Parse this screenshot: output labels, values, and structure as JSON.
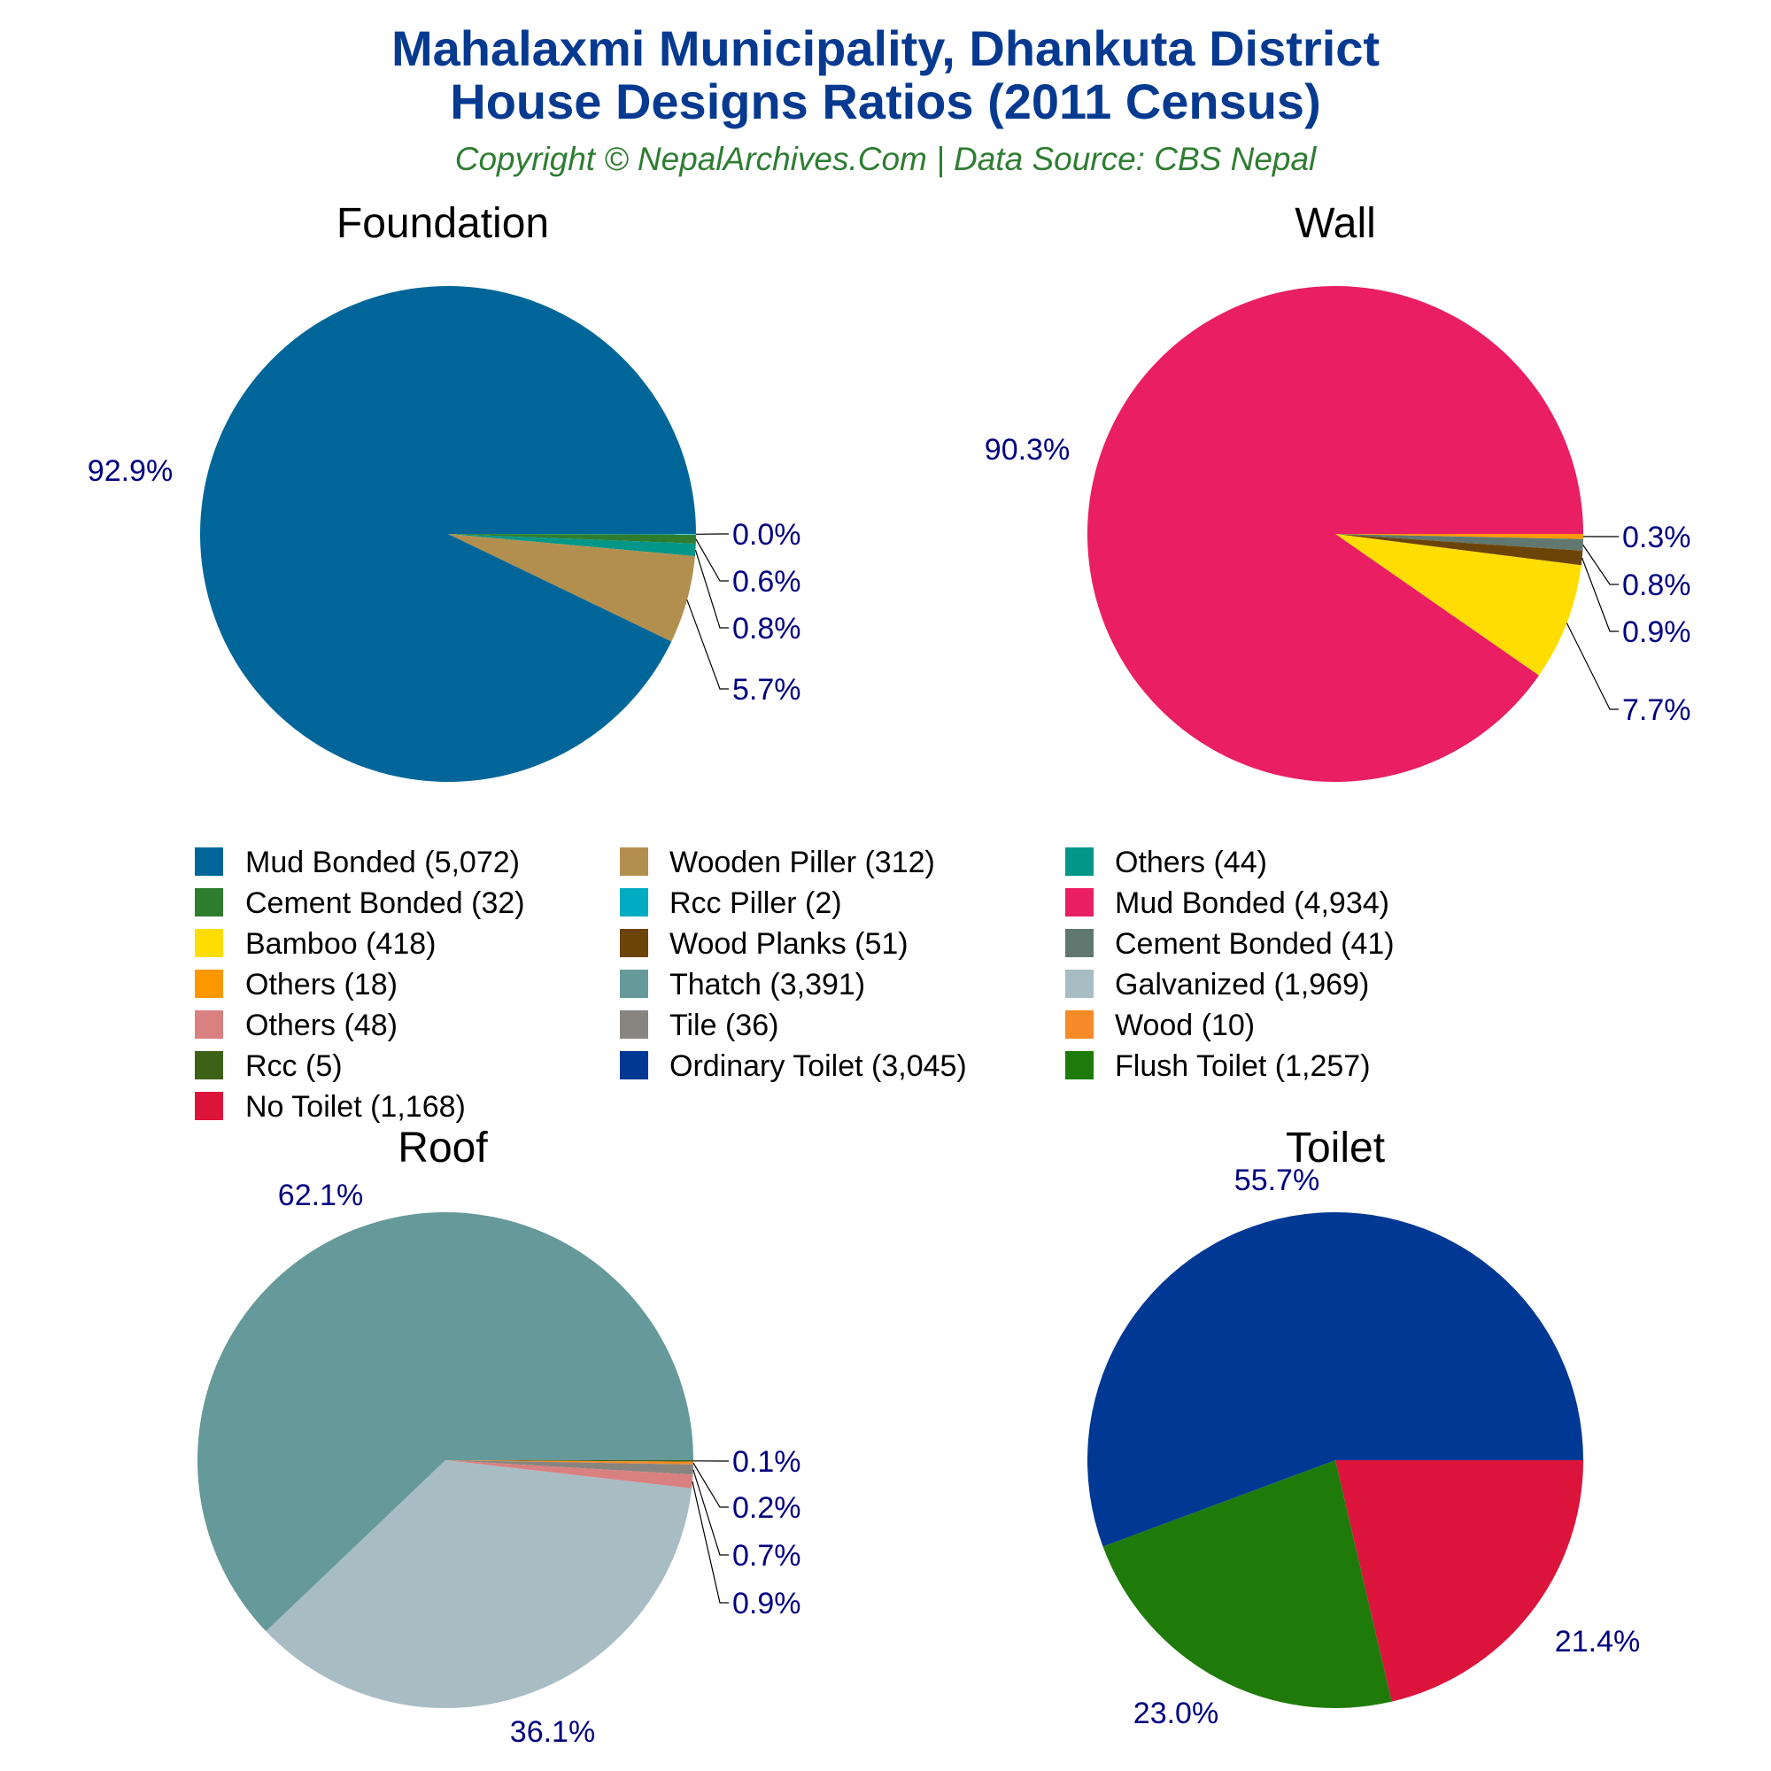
{
  "title_line1": "Mahalaxmi Municipality, Dhankuta District",
  "title_line2": "House Designs Ratios (2011 Census)",
  "copyright": "Copyright © NepalArchives.Com | Data Source: CBS Nepal",
  "colors": {
    "title": "#063a91",
    "copyright": "#2e7d32",
    "labels": "#000080"
  },
  "chart_data": [
    {
      "type": "pie",
      "title": "Foundation",
      "start": "3 o'clock, clockwise",
      "slices": [
        {
          "label": "Rcc Piller",
          "value": 2,
          "percent": "0.0%",
          "color": "#00acc1"
        },
        {
          "label": "Cement Bonded",
          "value": 32,
          "percent": "0.6%",
          "color": "#2e7d2e"
        },
        {
          "label": "Others",
          "value": 44,
          "percent": "0.8%",
          "color": "#009688"
        },
        {
          "label": "Wooden Piller",
          "value": 312,
          "percent": "5.7%",
          "color": "#b38f4f"
        },
        {
          "label": "Mud Bonded",
          "value": 5072,
          "percent": "92.9%",
          "color": "#006699"
        }
      ]
    },
    {
      "type": "pie",
      "title": "Wall",
      "slices": [
        {
          "label": "Others",
          "value": 18,
          "percent": "0.3%",
          "color": "#ff9800"
        },
        {
          "label": "Cement Bonded",
          "value": 41,
          "percent": "0.8%",
          "color": "#607870"
        },
        {
          "label": "Wood Planks",
          "value": 51,
          "percent": "0.9%",
          "color": "#6d4408"
        },
        {
          "label": "Bamboo",
          "value": 418,
          "percent": "7.7%",
          "color": "#ffdd00"
        },
        {
          "label": "Mud Bonded",
          "value": 4934,
          "percent": "90.3%",
          "color": "#e91e63"
        }
      ]
    },
    {
      "type": "pie",
      "title": "Roof",
      "slices": [
        {
          "label": "Rcc",
          "value": 5,
          "percent": "0.1%",
          "color": "#3d6117"
        },
        {
          "label": "Wood",
          "value": 10,
          "percent": "0.2%",
          "color": "#f58a26"
        },
        {
          "label": "Tile",
          "value": 36,
          "percent": "0.7%",
          "color": "#888480"
        },
        {
          "label": "Others",
          "value": 48,
          "percent": "0.9%",
          "color": "#d98080"
        },
        {
          "label": "Galvanized",
          "value": 1969,
          "percent": "36.1%",
          "color": "#a8bcc4"
        },
        {
          "label": "Thatch",
          "value": 3391,
          "percent": "62.1%",
          "color": "#669999"
        }
      ]
    },
    {
      "type": "pie",
      "title": "Toilet",
      "slices": [
        {
          "label": "No Toilet",
          "value": 1168,
          "percent": "21.4%",
          "color": "#dc143c"
        },
        {
          "label": "Flush Toilet",
          "value": 1257,
          "percent": "23.0%",
          "color": "#1e7b0a"
        },
        {
          "label": "Ordinary Toilet",
          "value": 3045,
          "percent": "55.7%",
          "color": "#003893"
        }
      ]
    }
  ],
  "legend": [
    {
      "text": "Mud Bonded (5,072)",
      "color": "#006699"
    },
    {
      "text": "Cement Bonded (32)",
      "color": "#2e7d2e"
    },
    {
      "text": "Bamboo (418)",
      "color": "#ffdd00"
    },
    {
      "text": "Others (18)",
      "color": "#ff9800"
    },
    {
      "text": "Others (48)",
      "color": "#d98080"
    },
    {
      "text": "Rcc (5)",
      "color": "#3d6117"
    },
    {
      "text": "No Toilet (1,168)",
      "color": "#dc143c"
    },
    {
      "text": "Wooden Piller (312)",
      "color": "#b38f4f"
    },
    {
      "text": "Rcc Piller (2)",
      "color": "#00acc1"
    },
    {
      "text": "Wood Planks (51)",
      "color": "#6d4408"
    },
    {
      "text": "Thatch (3,391)",
      "color": "#669999"
    },
    {
      "text": "Tile (36)",
      "color": "#888480"
    },
    {
      "text": "Ordinary Toilet (3,045)",
      "color": "#003893"
    },
    {
      "text": "Others (44)",
      "color": "#009688"
    },
    {
      "text": "Mud Bonded (4,934)",
      "color": "#e91e63"
    },
    {
      "text": "Cement Bonded (41)",
      "color": "#607870"
    },
    {
      "text": "Galvanized (1,969)",
      "color": "#a8bcc4"
    },
    {
      "text": "Wood (10)",
      "color": "#f58a26"
    },
    {
      "text": "Flush Toilet (1,257)",
      "color": "#1e7b0a"
    }
  ],
  "legend_position": "center"
}
